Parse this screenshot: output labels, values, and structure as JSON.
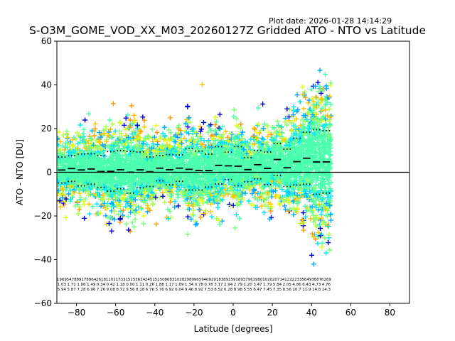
{
  "header": {
    "plot_date": "Plot date: 2026-01-28 14:14:29"
  },
  "chart_data": {
    "type": "scatter",
    "title": "S-O3M_GOME_VOD_XX_M03_20260127Z Gridded ATO - NTO vs Latitude",
    "xlabel": "Latitude [degrees]",
    "ylabel": "ATO - NTO [DU]",
    "xlim": [
      -90,
      90
    ],
    "ylim": [
      -60,
      60
    ],
    "xticks": [
      -80,
      -60,
      -40,
      -20,
      0,
      20,
      40,
      60,
      80
    ],
    "yticks": [
      -60,
      -40,
      -20,
      0,
      20,
      40,
      60
    ],
    "grid": false,
    "zero_line": 0,
    "marker": "+",
    "colors": [
      "#0000cc",
      "#00a8ff",
      "#00e4f8",
      "#49ffad",
      "#7dff7a",
      "#b0ff46",
      "#e4ff13",
      "#ffc400",
      "#ff9800"
    ],
    "bins": {
      "lat_start": -90,
      "lat_step": 5,
      "lat_end": 70,
      "mean": [
        1.03,
        1.71,
        1.06,
        1.49,
        0.34,
        0.42,
        1.18,
        0.0,
        1.11,
        0.26,
        1.88,
        1.17,
        1.89,
        1.34,
        0.78,
        0.78,
        3.17,
        2.94,
        2.79,
        1.2,
        3.47,
        1.79,
        5.84,
        2.05,
        4.86,
        6.43,
        4.73,
        4.76
      ],
      "std": [
        5.94,
        5.87,
        7.28,
        6.96,
        7.26,
        9.08,
        8.72,
        9.56,
        8.18,
        6.76,
        5.76,
        6.92,
        6.04,
        9.46,
        8.92,
        7.53,
        8.52,
        6.28,
        8.98,
        5.55,
        6.47,
        7.45,
        7.35,
        8.56,
        10.7,
        11.9,
        14.8,
        14.3
      ],
      "count": [
        1969,
        5478,
        8917,
        8864,
        2618,
        1101,
        1733,
        1515,
        3624,
        2451,
        5150,
        8083,
        1028,
        2989,
        9659,
        4092,
        9183,
        8915,
        9189,
        3796,
        1980,
        1020,
        2071,
        4122,
        2233,
        5649,
        3687,
        6269
      ]
    },
    "count_labels_row1": [
      "1969",
      "5478",
      "8917",
      "8864",
      "2618",
      "1101",
      "1733",
      "1515",
      "3624",
      "2451",
      "5150",
      "8083",
      "1028",
      "2989",
      "9659",
      "4092",
      "9183",
      "8915",
      "9189",
      "3796",
      "1980",
      "1020",
      "2071",
      "4122",
      "2233",
      "5649",
      "3687",
      "6269"
    ],
    "count_labels_row2": [
      "1.03",
      "1.71",
      "1.06",
      "1.49",
      "0.34",
      "0.42",
      "1.18",
      "0.00",
      "1.11",
      "0.26",
      "1.88",
      "1.17",
      "1.89",
      "1.34",
      "0.78",
      "0.78",
      "3.17",
      "2.94",
      "2.79",
      "1.20",
      "3.47",
      "1.79",
      "5.84",
      "2.05",
      "4.86",
      "6.43",
      "4.73",
      "4.76"
    ],
    "count_labels_row3": [
      "5.94",
      "5.87",
      "7.28",
      "6.96",
      "7.26",
      "9.08",
      "8.72",
      "9.56",
      "8.18",
      "6.76",
      "5.76",
      "6.92",
      "6.04",
      "9.46",
      "8.92",
      "7.53",
      "8.52",
      "6.28",
      "8.98",
      "5.55",
      "6.47",
      "7.45",
      "7.35",
      "8.56",
      "10.7",
      "11.9",
      "14.8",
      "14.3"
    ]
  }
}
